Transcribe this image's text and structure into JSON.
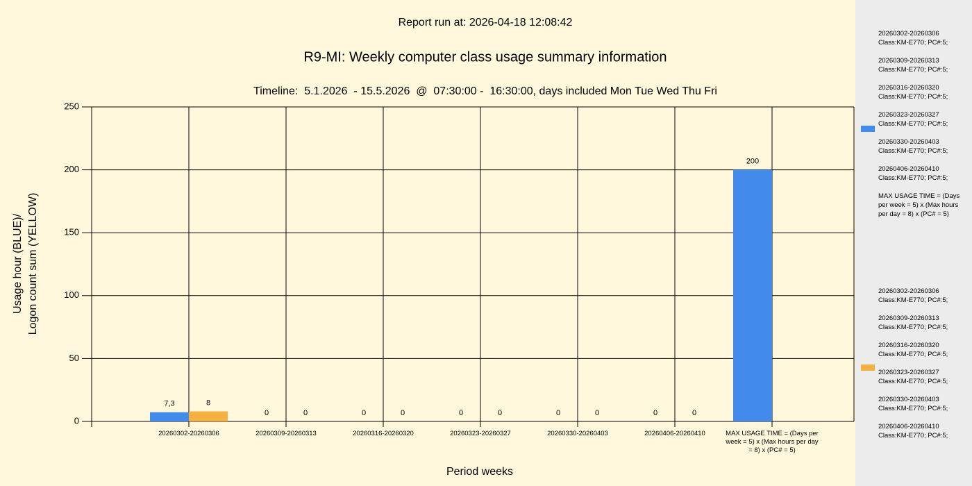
{
  "chart_data": {
    "type": "bar",
    "report_run": "Report run at: 2026-04-18 12:08:42",
    "title": "R9-MI: Weekly computer class usage summary information",
    "subtitle": "Timeline:  5.1.2026  - 15.5.2026  @  07:30:00 -  16:30:00, days included Mon Tue Wed Thu Fri",
    "y_label": [
      "Usage hour (BLUE)/",
      "Logon count sum (YELLOW)"
    ],
    "x_label": "Period weeks",
    "categories": [
      "20260302-20260306",
      "20260309-20260313",
      "20260316-20260320",
      "20260323-20260327",
      "20260330-20260403",
      "20260406-20260410",
      "MAX USAGE TIME = (Days per week = 5) x (Max hours per day = 8) x (PC# = 5)"
    ],
    "series": [
      {
        "color": "#428bea",
        "values": [
          7.3,
          0,
          0,
          0,
          0,
          0,
          200
        ],
        "value_labels": [
          "7,3",
          "0",
          "0",
          "0",
          "0",
          "0",
          "200"
        ],
        "legend_entries": [
          [
            "20260302-20260306",
            "Class:KM-E770; PC#:5;"
          ],
          [
            "20260309-20260313",
            "Class:KM-E770; PC#:5;"
          ],
          [
            "20260316-20260320",
            "Class:KM-E770; PC#:5;"
          ],
          [
            "20260323-20260327",
            "Class:KM-E770; PC#:5;"
          ],
          [
            "20260330-20260403",
            "Class:KM-E770; PC#:5;"
          ],
          [
            "20260406-20260410",
            "Class:KM-E770; PC#:5;"
          ],
          [
            "MAX USAGE TIME =  (Days per week = 5) x (Max hours per day = 8) x (PC# = 5)"
          ]
        ]
      },
      {
        "color": "#f5b042",
        "values": [
          8,
          0,
          0,
          0,
          0,
          0,
          null
        ],
        "value_labels": [
          "8",
          "0",
          "0",
          "0",
          "0",
          "0",
          null
        ],
        "legend_entries": [
          [
            "20260302-20260306",
            "Class:KM-E770; PC#:5;"
          ],
          [
            "20260309-20260313",
            "Class:KM-E770; PC#:5;"
          ],
          [
            "20260316-20260320",
            "Class:KM-E770; PC#:5;"
          ],
          [
            "20260323-20260327",
            "Class:KM-E770; PC#:5;"
          ],
          [
            "20260330-20260403",
            "Class:KM-E770; PC#:5;"
          ],
          [
            "20260406-20260410",
            "Class:KM-E770; PC#:5;"
          ]
        ]
      }
    ],
    "ylim": [
      0,
      250
    ],
    "yticks": [
      0,
      50,
      100,
      150,
      200,
      250
    ],
    "grid": true
  }
}
